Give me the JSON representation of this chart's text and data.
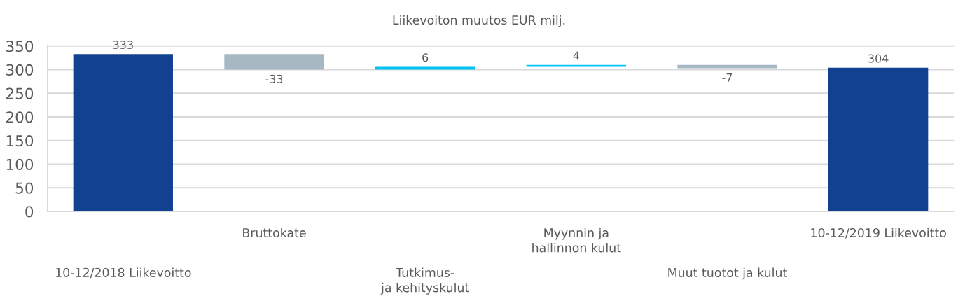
{
  "chart_data": {
    "type": "bar",
    "title": "Liikevoiton muutos EUR milj.",
    "categories": [
      "10-12/2018 Liikevoitto",
      "Bruttokate",
      "Tutkimus-\nja kehityskulut",
      "Myynnin ja\nhallinnon kulut",
      "Muut tuotot ja kulut",
      "10-12/2019 Liikevoitto"
    ],
    "values": [
      333,
      -33,
      6,
      4,
      -7,
      304
    ],
    "base": [
      0,
      333,
      300,
      306,
      310,
      0
    ],
    "colors": [
      "#134191",
      "#a8b8c2",
      "#00c3f5",
      "#00c3f5",
      "#a8b8c2",
      "#134191"
    ],
    "ylim": [
      0,
      350
    ],
    "yticks": [
      0,
      50,
      100,
      150,
      200,
      250,
      300,
      350
    ],
    "grid": "y",
    "data_labels": true
  }
}
